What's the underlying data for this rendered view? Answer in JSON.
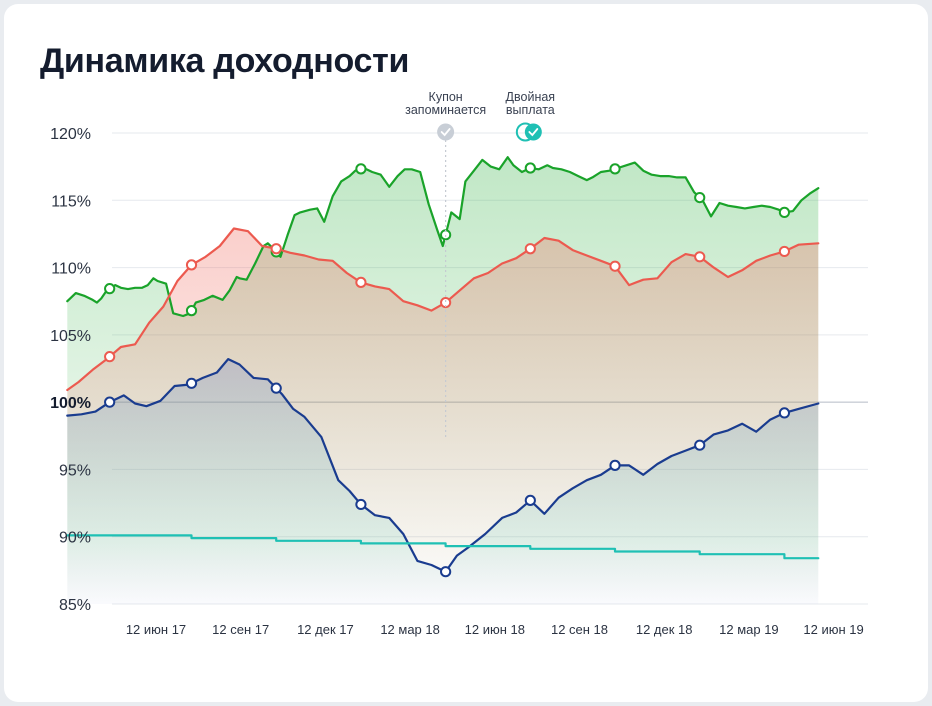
{
  "title": "Динамика доходности",
  "annotations": [
    {
      "line1": "Купон",
      "line2": "запоминается",
      "icon": "check-circle-icon",
      "color": "#c8ced6"
    },
    {
      "line1": "Двойная",
      "line2": "выплата",
      "icon": "double-check-icon",
      "color": "#1fc0b4"
    }
  ],
  "chart_data": {
    "type": "line",
    "title": "Динамика доходности",
    "xlabel": "",
    "ylabel": "",
    "x_ticks": [
      "12 июн 17",
      "12 сен 17",
      "12 дек 17",
      "12 мар 18",
      "12 июн 18",
      "12 сен 18",
      "12 дек 18",
      "12 мар 19",
      "12 июн 19"
    ],
    "y_ticks": [
      "85%",
      "90%",
      "95%",
      "100%",
      "105%",
      "110%",
      "115%",
      "120%"
    ],
    "ylim": [
      85,
      120
    ],
    "x_range": [
      "12 апр 17",
      "29 июн 19"
    ],
    "grid": true,
    "legend": "none",
    "observation_dates": [
      "12 июн 17",
      "12 сен 17",
      "12 дек 17",
      "12 мар 18",
      "12 июн 18",
      "12 сен 18",
      "12 дек 18",
      "12 мар 19",
      "12 июн 19"
    ],
    "series": [
      {
        "color": "#1aa32a",
        "x": [
          0,
          0.3,
          0.6,
          0.9,
          1.05,
          1.2,
          1.4,
          1.7,
          1.9,
          2.15,
          2.4,
          2.65,
          2.85,
          3.05,
          3.2,
          3.5,
          3.75,
          4.1,
          4.35,
          4.55,
          4.85,
          5.15,
          5.5,
          5.75,
          6.0,
          6.1,
          6.35,
          6.65,
          6.95,
          7.1,
          7.3,
          7.55,
          7.8,
          8.05,
          8.25,
          8.6,
          8.85,
          9.1,
          9.4,
          9.7,
          10.0,
          10.2,
          10.5,
          10.8,
          11.1,
          11.4,
          11.7,
          11.95,
          12.2,
          12.5,
          12.8,
          13.1,
          13.3,
          13.6,
          13.9,
          14.1,
          14.4,
          14.7,
          15.0,
          15.3,
          15.6,
          15.8,
          16.1,
          16.4,
          16.7,
          17.0,
          17.2,
          17.5,
          17.8,
          18.1,
          18.4,
          18.6,
          18.9,
          19.2,
          19.5,
          19.8,
          20.1,
          20.4,
          20.7,
          21.0,
          21.3,
          21.6,
          21.9,
          22.2,
          22.5,
          22.8,
          23.1,
          23.4,
          23.7,
          24.0,
          24.3,
          24.6,
          24.9,
          25.2,
          25.4,
          25.7,
          26.0,
          26.3,
          26.6
        ],
        "values": [
          107.5,
          108.1,
          107.9,
          107.6,
          107.4,
          107.7,
          108.3,
          108.7,
          108.5,
          108.4,
          108.5,
          108.5,
          108.7,
          109.2,
          109.0,
          108.8,
          106.6,
          106.4,
          106.6,
          107.4,
          107.6,
          107.9,
          107.6,
          108.3,
          109.3,
          109.2,
          109.1,
          110.3,
          111.6,
          111.8,
          111.4,
          110.8,
          112.4,
          113.9,
          114.1,
          114.3,
          114.4,
          113.4,
          115.3,
          116.4,
          116.8,
          117.2,
          117.4,
          117.1,
          116.9,
          116.0,
          116.8,
          117.3,
          117.3,
          117.1,
          114.7,
          112.8,
          111.6,
          114.1,
          113.6,
          116.4,
          117.2,
          118.0,
          117.5,
          117.3,
          118.2,
          117.6,
          117.1,
          117.4,
          117.3,
          117.6,
          117.4,
          117.3,
          117.1,
          116.8,
          116.5,
          116.7,
          117.1,
          117.2,
          117.4,
          117.6,
          117.8,
          117.2,
          116.9,
          116.8,
          116.8,
          116.7,
          116.7,
          115.6,
          115.0,
          113.8,
          114.8,
          114.6,
          114.5,
          114.4,
          114.5,
          114.6,
          114.5,
          114.3,
          114.1,
          114.2,
          115.0,
          115.5,
          115.9
        ]
      },
      {
        "color": "#ec5a4f",
        "x": [
          0,
          0.4,
          0.9,
          1.4,
          1.9,
          2.4,
          2.9,
          3.4,
          3.9,
          4.4,
          4.9,
          5.4,
          5.9,
          6.4,
          6.9,
          7.4,
          7.9,
          8.4,
          8.9,
          9.4,
          9.9,
          10.4,
          10.9,
          11.4,
          11.9,
          12.4,
          12.9,
          13.4,
          13.9,
          14.4,
          14.9,
          15.4,
          15.9,
          16.4,
          16.9,
          17.4,
          17.9,
          18.4,
          18.9,
          19.4,
          19.9,
          20.4,
          20.9,
          21.4,
          21.9,
          22.4,
          22.9,
          23.4,
          23.9,
          24.4,
          24.9,
          25.4,
          25.9,
          26.6
        ],
        "values": [
          100.9,
          101.5,
          102.4,
          103.2,
          104.1,
          104.3,
          105.9,
          107.1,
          109.0,
          110.2,
          110.8,
          111.6,
          112.9,
          112.7,
          111.6,
          111.4,
          111.1,
          110.9,
          110.6,
          110.5,
          109.6,
          108.9,
          108.6,
          108.4,
          107.5,
          107.2,
          106.8,
          107.4,
          108.3,
          109.2,
          109.6,
          110.3,
          110.7,
          111.4,
          112.2,
          112.0,
          111.3,
          110.9,
          110.5,
          110.1,
          108.7,
          109.1,
          109.2,
          110.4,
          111.0,
          110.8,
          110.0,
          109.3,
          109.8,
          110.5,
          110.9,
          111.2,
          111.7,
          111.8
        ]
      },
      {
        "color": "#1a3c8f",
        "x": [
          0,
          0.5,
          1.0,
          1.5,
          2.0,
          2.4,
          2.8,
          3.3,
          3.8,
          4.3,
          4.8,
          5.3,
          5.7,
          6.1,
          6.6,
          7.1,
          7.6,
          8.0,
          8.4,
          9.0,
          9.6,
          10.0,
          10.4,
          10.9,
          11.4,
          11.9,
          12.4,
          12.9,
          13.4,
          13.8,
          14.2,
          14.8,
          15.4,
          15.9,
          16.4,
          16.9,
          17.4,
          17.9,
          18.4,
          18.9,
          19.4,
          19.9,
          20.4,
          20.9,
          21.4,
          21.9,
          22.4,
          22.9,
          23.4,
          23.9,
          24.4,
          24.9,
          25.4,
          25.9,
          26.6
        ],
        "values": [
          99.0,
          99.1,
          99.3,
          100.0,
          100.5,
          99.9,
          99.7,
          100.1,
          101.2,
          101.3,
          101.8,
          102.2,
          103.2,
          102.8,
          101.8,
          101.7,
          100.6,
          99.5,
          98.9,
          97.4,
          94.2,
          93.4,
          92.4,
          91.6,
          91.4,
          90.2,
          88.2,
          87.9,
          87.4,
          88.6,
          89.2,
          90.2,
          91.4,
          91.8,
          92.7,
          91.7,
          92.9,
          93.6,
          94.2,
          94.6,
          95.3,
          95.3,
          94.6,
          95.4,
          96.0,
          96.4,
          96.8,
          97.6,
          97.9,
          98.4,
          97.8,
          98.7,
          99.2,
          99.5,
          99.9
        ]
      },
      {
        "color": "#1fc0b4",
        "step": true,
        "x": [
          0,
          4.4,
          4.4,
          7.4,
          7.4,
          10.4,
          10.4,
          13.4,
          13.4,
          16.4,
          16.4,
          19.4,
          19.4,
          22.4,
          22.4,
          25.4,
          25.4,
          26.6
        ],
        "values": [
          90.1,
          90.1,
          89.9,
          89.9,
          89.7,
          89.7,
          89.5,
          89.5,
          89.3,
          89.3,
          89.1,
          89.1,
          88.9,
          88.9,
          88.7,
          88.7,
          88.4,
          88.4
        ]
      }
    ]
  }
}
